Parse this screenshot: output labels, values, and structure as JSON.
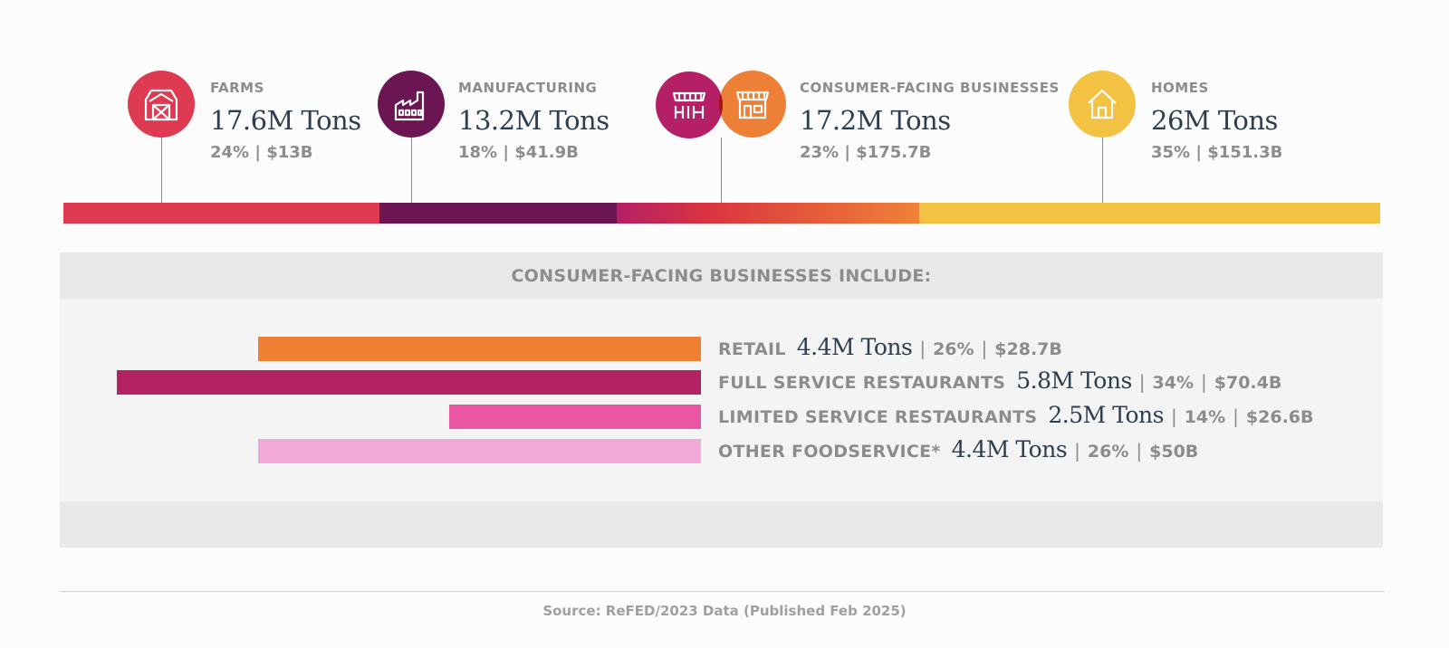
{
  "sectors": [
    {
      "label": "FARMS",
      "tons": "17.6M Tons",
      "share": "24% | $13B",
      "icon": "barn-icon",
      "color": "#de3a51"
    },
    {
      "label": "MANUFACTURING",
      "tons": "13.2M Tons",
      "share": "18% | $41.9B",
      "icon": "factory-icon",
      "color": "#6b1652"
    },
    {
      "label": "CONSUMER-FACING BUSINESSES",
      "tons": "17.2M Tons",
      "share": "23% | $175.7B",
      "icon": "storefront-icon",
      "color": "#f08236",
      "icon2": "market-stall-icon",
      "color2": "#b51f66"
    },
    {
      "label": "HOMES",
      "tons": "26M  Tons",
      "share": "35% | $151.3B",
      "icon": "house-icon",
      "color": "#f4c242"
    }
  ],
  "panel": {
    "title": "CONSUMER-FACING BUSINESSES INCLUDE:"
  },
  "chart_data": {
    "type": "bar",
    "orientation": "horizontal",
    "categories": [
      "RETAIL",
      "FULL SERVICE RESTAURANTS",
      "LIMITED SERVICE RESTAURANTS",
      "OTHER FOODSERVICE*"
    ],
    "values": [
      4.4,
      5.8,
      2.5,
      4.4
    ],
    "unit": "M Tons",
    "tons_labels": [
      "4.4M Tons",
      "5.8M Tons",
      "2.5M Tons",
      "4.4M Tons"
    ],
    "percent_labels": [
      "26%",
      "34%",
      "14%",
      "26%"
    ],
    "dollar_labels": [
      "$28.7B",
      "$70.4B",
      "$26.6B",
      "$50B"
    ],
    "colors": [
      "#ef7f32",
      "#b32364",
      "#e957a4",
      "#f1a9d8"
    ]
  },
  "band": {
    "shares": [
      24,
      18,
      23,
      35
    ],
    "colors": [
      "#de3a51",
      "#6b1652",
      "#b51f66",
      "#f4c242"
    ],
    "gradient_end": "#f08236"
  },
  "source": "Source: ReFED/2023 Data (Published Feb 2025)"
}
